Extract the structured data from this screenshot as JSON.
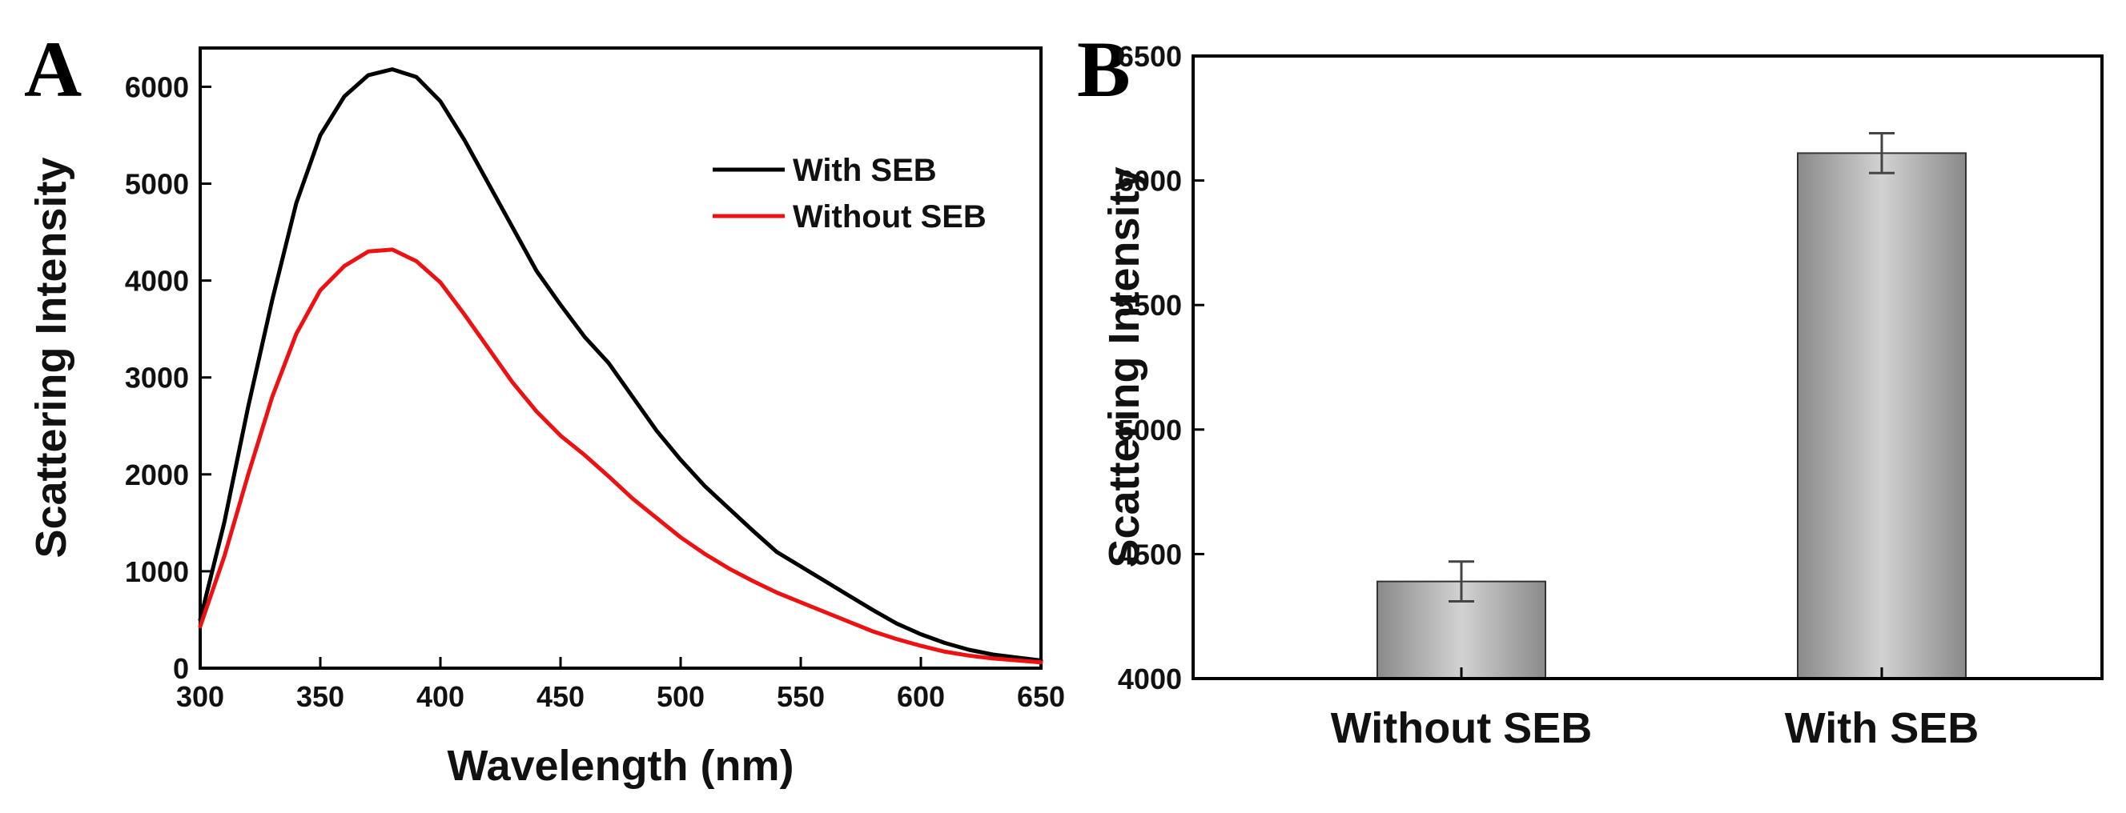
{
  "chart_data": [
    {
      "panel": "A",
      "type": "line",
      "xlabel": "Wavelength (nm)",
      "ylabel": "Scattering Intensity",
      "xlim": [
        300,
        650
      ],
      "ylim": [
        0,
        6400
      ],
      "xticks": [
        300,
        350,
        400,
        450,
        500,
        550,
        600,
        650
      ],
      "yticks": [
        0,
        1000,
        2000,
        3000,
        4000,
        5000,
        6000
      ],
      "legend_position": "top-right",
      "series": [
        {
          "name": "With SEB",
          "color": "#000000",
          "x": [
            300,
            310,
            320,
            330,
            340,
            350,
            360,
            370,
            380,
            390,
            400,
            410,
            420,
            430,
            440,
            450,
            460,
            470,
            480,
            490,
            500,
            510,
            520,
            530,
            540,
            550,
            560,
            570,
            580,
            590,
            600,
            610,
            620,
            630,
            640,
            650
          ],
          "y": [
            500,
            1500,
            2700,
            3800,
            4800,
            5500,
            5900,
            6120,
            6180,
            6100,
            5850,
            5450,
            5000,
            4550,
            4100,
            3750,
            3420,
            3150,
            2800,
            2450,
            2150,
            1880,
            1650,
            1420,
            1200,
            1050,
            900,
            750,
            600,
            460,
            350,
            260,
            190,
            140,
            110,
            80
          ]
        },
        {
          "name": "Without SEB",
          "color": "#ee1111",
          "x": [
            300,
            310,
            320,
            330,
            340,
            350,
            360,
            370,
            380,
            390,
            400,
            410,
            420,
            430,
            440,
            450,
            460,
            470,
            480,
            490,
            500,
            510,
            520,
            530,
            540,
            550,
            560,
            570,
            580,
            590,
            600,
            610,
            620,
            630,
            640,
            650
          ],
          "y": [
            430,
            1150,
            2000,
            2800,
            3450,
            3900,
            4150,
            4300,
            4320,
            4200,
            3980,
            3650,
            3300,
            2950,
            2650,
            2400,
            2200,
            1980,
            1750,
            1550,
            1350,
            1180,
            1030,
            900,
            780,
            680,
            580,
            480,
            380,
            300,
            230,
            170,
            130,
            100,
            80,
            60
          ]
        }
      ]
    },
    {
      "panel": "B",
      "type": "bar",
      "xlabel": "",
      "ylabel": "Scattering Intensity",
      "ylim": [
        4000,
        6500
      ],
      "yticks": [
        4000,
        4500,
        5000,
        5500,
        6000,
        6500
      ],
      "categories": [
        "Without SEB",
        "With SEB"
      ],
      "values": [
        4390,
        6110
      ],
      "errors": [
        80,
        80
      ]
    }
  ]
}
